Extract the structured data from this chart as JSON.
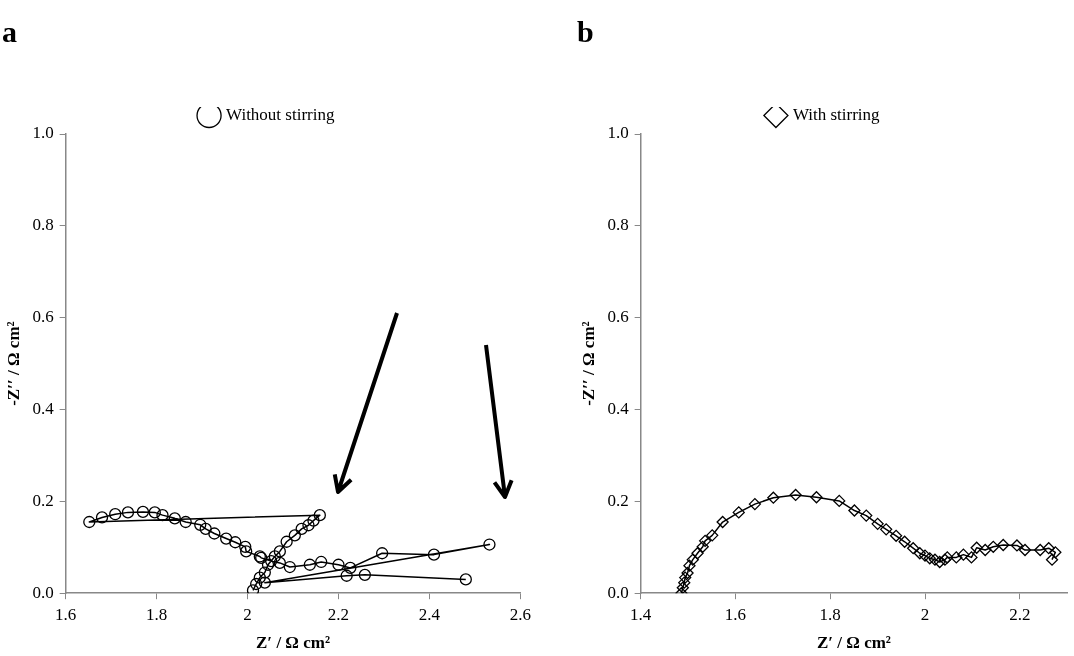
{
  "chart_data": [
    {
      "type": "line",
      "title": "a",
      "xlabel": "Z′ / Ω cm²",
      "ylabel": "-Z′′ / Ω cm²",
      "legend": "top",
      "marker": "circle",
      "grid": false,
      "x": [
        2.012,
        2.019,
        2.027,
        2.038,
        2.045,
        2.06,
        2.071,
        2.086,
        2.104,
        2.119,
        2.134,
        2.145,
        2.159,
        1.652,
        1.68,
        1.709,
        1.737,
        1.77,
        1.796,
        1.813,
        1.84,
        1.864,
        1.896,
        1.908,
        1.927,
        1.953,
        1.973,
        1.995,
        1.997,
        2.027,
        2.03,
        2.052,
        2.071,
        2.093,
        2.137,
        2.162,
        2.2,
        2.226,
        2.296,
        2.41,
        2.532,
        2.038,
        2.218,
        2.258,
        2.48
      ],
      "series": [
        {
          "name": "Without stirring",
          "color": "#000000",
          "values": [
            0.006,
            0.02,
            0.034,
            0.045,
            0.062,
            0.08,
            0.091,
            0.112,
            0.126,
            0.14,
            0.148,
            0.158,
            0.17,
            0.155,
            0.165,
            0.172,
            0.176,
            0.177,
            0.176,
            0.17,
            0.163,
            0.155,
            0.149,
            0.14,
            0.13,
            0.119,
            0.111,
            0.101,
            0.091,
            0.08,
            0.077,
            0.07,
            0.066,
            0.057,
            0.062,
            0.068,
            0.062,
            0.055,
            0.087,
            0.084,
            0.106,
            0.023,
            0.038,
            0.04,
            0.03
          ]
        }
      ],
      "xlim": [
        1.6,
        2.6
      ],
      "xticks": [
        1.6,
        1.8,
        2,
        2.2,
        2.4,
        2.6
      ],
      "ylim": [
        0,
        1
      ],
      "yticks": [
        {
          "value": 0,
          "label": "0.0"
        },
        {
          "value": 0.2,
          "label": "0.2"
        },
        {
          "value": 0.4,
          "label": "0.4"
        },
        {
          "value": 0.6,
          "label": "0.6"
        },
        {
          "value": 0.8,
          "label": "0.8"
        },
        {
          "value": 1,
          "label": "1.0"
        }
      ]
    },
    {
      "type": "line",
      "title": "b",
      "xlabel": "Z′ / Ω cm²",
      "ylabel": "-Z′′ / Ω cm²",
      "legend": "top",
      "marker": "diamond",
      "grid": false,
      "x": [
        1.486,
        1.489,
        1.492,
        1.494,
        1.499,
        1.503,
        1.51,
        1.52,
        1.531,
        1.536,
        1.551,
        1.573,
        1.607,
        1.641,
        1.68,
        1.727,
        1.771,
        1.819,
        1.851,
        1.876,
        1.9,
        1.918,
        1.939,
        1.957,
        1.975,
        1.989,
        2.0,
        2.01,
        2.021,
        2.031,
        2.042,
        2.047,
        2.066,
        2.081,
        2.098,
        2.109,
        2.127,
        2.144,
        2.165,
        2.194,
        2.211,
        2.243,
        2.261,
        2.275,
        2.268
      ],
      "series": [
        {
          "name": "With stirring",
          "color": "#000000",
          "values": [
            0.0,
            0.012,
            0.023,
            0.034,
            0.044,
            0.06,
            0.073,
            0.087,
            0.101,
            0.114,
            0.126,
            0.155,
            0.176,
            0.194,
            0.208,
            0.214,
            0.209,
            0.201,
            0.18,
            0.169,
            0.151,
            0.139,
            0.125,
            0.112,
            0.098,
            0.087,
            0.082,
            0.076,
            0.073,
            0.068,
            0.073,
            0.078,
            0.078,
            0.084,
            0.078,
            0.099,
            0.094,
            0.101,
            0.105,
            0.104,
            0.094,
            0.094,
            0.098,
            0.089,
            0.073
          ]
        }
      ],
      "xlim": [
        1.4,
        2.3
      ],
      "xticks": [
        1.4,
        1.6,
        1.8,
        2,
        2.2
      ],
      "ylim": [
        0,
        1
      ],
      "yticks": [
        {
          "value": 0,
          "label": "0.0"
        },
        {
          "value": 0.2,
          "label": "0.2"
        },
        {
          "value": 0.4,
          "label": "0.4"
        },
        {
          "value": 0.6,
          "label": "0.6"
        },
        {
          "value": 0.8,
          "label": "0.8"
        },
        {
          "value": 1,
          "label": "1.0"
        }
      ]
    }
  ]
}
